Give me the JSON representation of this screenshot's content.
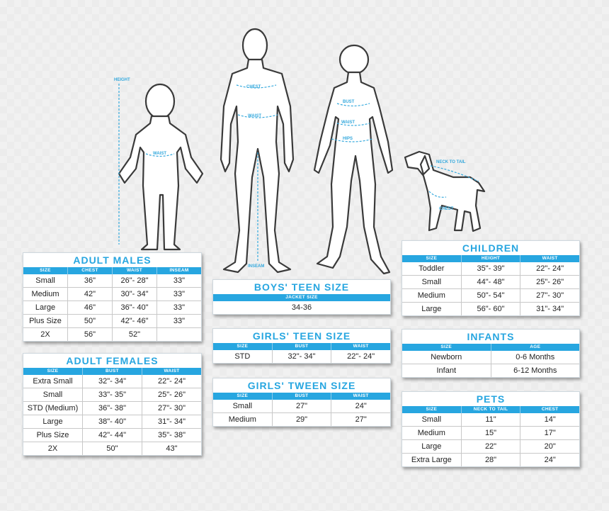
{
  "figures": {
    "child_labels": [
      "HEIGHT",
      "WAIST"
    ],
    "male_labels": [
      "CHEST",
      "WAIST",
      "INSEAM"
    ],
    "female_labels": [
      "BUST",
      "WAIST",
      "HIPS"
    ],
    "dog_labels": [
      "NECK TO TAIL",
      "CHEST"
    ]
  },
  "tables": {
    "adult_males": {
      "title": "ADULT MALES",
      "headers": [
        "SIZE",
        "CHEST",
        "WAIST",
        "INSEAM"
      ],
      "rows": [
        [
          "Small",
          "36\"",
          "26\"- 28\"",
          "33\""
        ],
        [
          "Medium",
          "42\"",
          "30\"- 34\"",
          "33\""
        ],
        [
          "Large",
          "46\"",
          "36\"- 40\"",
          "33\""
        ],
        [
          "Plus Size",
          "50\"",
          "42\"- 46\"",
          "33\""
        ],
        [
          "2X",
          "56\"",
          "52\"",
          ""
        ]
      ]
    },
    "adult_females": {
      "title": "ADULT FEMALES",
      "headers": [
        "SIZE",
        "BUST",
        "WAIST"
      ],
      "rows": [
        [
          "Extra Small",
          "32\"- 34\"",
          "22\"- 24\""
        ],
        [
          "Small",
          "33\"- 35\"",
          "25\"- 26\""
        ],
        [
          "STD (Medium)",
          "36\"- 38\"",
          "27\"- 30\""
        ],
        [
          "Large",
          "38\"- 40\"",
          "31\"- 34\""
        ],
        [
          "Plus Size",
          "42\"- 44\"",
          "35\"- 38\""
        ],
        [
          "2X",
          "50\"",
          "43\""
        ]
      ]
    },
    "boys_teen": {
      "title": "BOYS' TEEN SIZE",
      "headers": [
        "JACKET SIZE"
      ],
      "rows": [
        [
          "34-36"
        ]
      ]
    },
    "girls_teen": {
      "title": "GIRLS' TEEN SIZE",
      "headers": [
        "SIZE",
        "BUST",
        "WAIST"
      ],
      "rows": [
        [
          "STD",
          "32\"- 34\"",
          "22\"- 24\""
        ]
      ]
    },
    "girls_tween": {
      "title": "GIRLS' TWEEN SIZE",
      "headers": [
        "SIZE",
        "BUST",
        "WAIST"
      ],
      "rows": [
        [
          "Small",
          "27\"",
          "24\""
        ],
        [
          "Medium",
          "29\"",
          "27\""
        ]
      ]
    },
    "children": {
      "title": "CHILDREN",
      "headers": [
        "SIZE",
        "HEIGHT",
        "WAIST"
      ],
      "rows": [
        [
          "Toddler",
          "35\"- 39\"",
          "22\"- 24\""
        ],
        [
          "Small",
          "44\"- 48\"",
          "25\"- 26\""
        ],
        [
          "Medium",
          "50\"- 54\"",
          "27\"- 30\""
        ],
        [
          "Large",
          "56\"- 60\"",
          "31\"- 34\""
        ]
      ]
    },
    "infants": {
      "title": "INFANTS",
      "headers": [
        "SIZE",
        "AGE"
      ],
      "rows": [
        [
          "Newborn",
          "0-6 Months"
        ],
        [
          "Infant",
          "6-12 Months"
        ]
      ]
    },
    "pets": {
      "title": "PETS",
      "headers": [
        "SIZE",
        "NECK TO TAIL",
        "CHEST"
      ],
      "rows": [
        [
          "Small",
          "11\"",
          "14\""
        ],
        [
          "Medium",
          "15\"",
          "17\""
        ],
        [
          "Large",
          "22\"",
          "20\""
        ],
        [
          "Extra Large",
          "28\"",
          "24\""
        ]
      ]
    }
  },
  "colors": {
    "accent": "#27a6e0",
    "figure_fill": "#ffffff",
    "figure_stroke": "#3a3a3a"
  }
}
